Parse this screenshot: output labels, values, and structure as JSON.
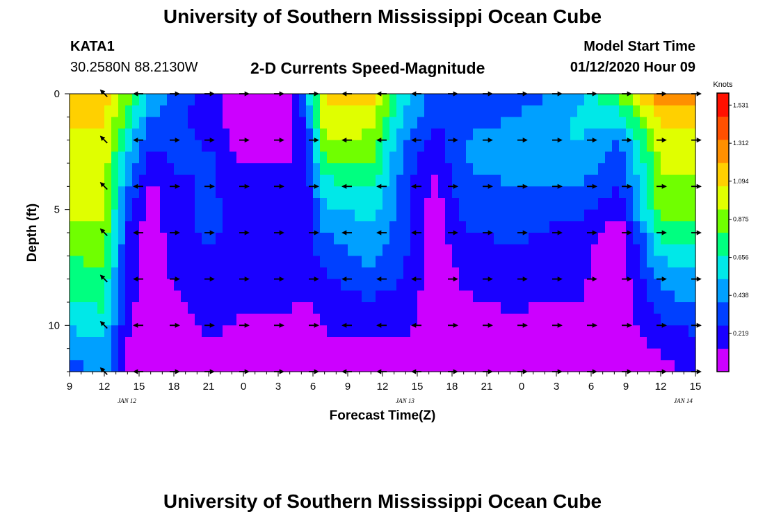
{
  "header": {
    "title": "University of Southern Mississippi Ocean Cube",
    "station": "KATA1",
    "coordinates": "30.2580N 88.2130W",
    "subtitle": "2-D Currents Speed-Magnitude",
    "model_start_label": "Model Start Time",
    "model_start_value": "01/12/2020 Hour 09"
  },
  "footer": {
    "title": "University of Southern Mississippi Ocean Cube"
  },
  "chart_data": {
    "type": "heatmap",
    "xlabel": "Forecast Time(Z)",
    "ylabel": "Depth (ft)",
    "x_tick_labels": [
      "9",
      "12",
      "15",
      "18",
      "21",
      "0",
      "3",
      "6",
      "9",
      "12",
      "15",
      "18",
      "21",
      "0",
      "3",
      "6",
      "9",
      "12",
      "15"
    ],
    "date_labels": [
      {
        "text": "JAN 12",
        "tick_index": 1.65
      },
      {
        "text": "JAN 13",
        "tick_index": 9.65
      },
      {
        "text": "JAN 14",
        "tick_index": 17.65
      }
    ],
    "x_range_hours": [
      0,
      54
    ],
    "y_tick_labels": [
      "0",
      "5",
      "10"
    ],
    "y_tick_values": [
      0,
      5,
      10
    ],
    "yrange": [
      0,
      12
    ],
    "colorbar": {
      "label": "Knots",
      "tick_labels": [
        "1.531",
        "1.312",
        "1.094",
        "0.875",
        "0.656",
        "0.438",
        "0.219"
      ],
      "tick_values": [
        1.531,
        1.312,
        1.094,
        0.875,
        0.656,
        0.438,
        0.219
      ],
      "range": [
        0,
        1.6
      ],
      "colors": [
        "#cc00ff",
        "#1a00ff",
        "#0040ff",
        "#00a0ff",
        "#00e8e8",
        "#00ff80",
        "#70ff00",
        "#e0ff00",
        "#ffd000",
        "#ff9000",
        "#ff5000",
        "#ff1000"
      ]
    },
    "depth_levels": [
      0,
      1,
      2,
      3,
      4,
      5,
      6,
      7,
      8,
      9,
      10,
      11,
      12
    ],
    "speed_profiles": [
      {
        "hour": 0,
        "speeds": [
          1.2,
          1.1,
          1.05,
          1.0,
          1.0,
          0.95,
          0.9,
          0.8,
          0.75,
          0.65,
          0.55,
          0.45,
          0.3
        ]
      },
      {
        "hour": 3,
        "speeds": [
          1.15,
          1.1,
          1.05,
          1.0,
          0.95,
          0.95,
          0.9,
          0.85,
          0.75,
          0.7,
          0.6,
          0.5,
          0.45
        ]
      },
      {
        "hour": 5,
        "speeds": [
          0.9,
          0.75,
          0.6,
          0.5,
          0.4,
          0.3,
          0.25,
          0.2,
          0.2,
          0.18,
          0.15,
          0.12,
          0.1
        ]
      },
      {
        "hour": 7,
        "speeds": [
          0.55,
          0.4,
          0.3,
          0.2,
          0.12,
          0.08,
          0.05,
          0.03,
          0.05,
          0.06,
          0.06,
          0.06,
          0.06
        ]
      },
      {
        "hour": 9,
        "speeds": [
          0.4,
          0.3,
          0.3,
          0.3,
          0.2,
          0.2,
          0.2,
          0.2,
          0.15,
          0.1,
          0.1,
          0.1,
          0.08
        ]
      },
      {
        "hour": 12,
        "speeds": [
          0.15,
          0.2,
          0.25,
          0.3,
          0.3,
          0.3,
          0.3,
          0.25,
          0.25,
          0.2,
          0.15,
          0.12,
          0.1
        ]
      },
      {
        "hour": 15,
        "speeds": [
          0.08,
          0.05,
          0.06,
          0.12,
          0.18,
          0.2,
          0.2,
          0.2,
          0.18,
          0.15,
          0.12,
          0.1,
          0.08
        ]
      },
      {
        "hour": 19,
        "speeds": [
          0.05,
          0.05,
          0.06,
          0.12,
          0.18,
          0.18,
          0.18,
          0.18,
          0.16,
          0.14,
          0.12,
          0.1,
          0.08
        ]
      },
      {
        "hour": 20.5,
        "speeds": [
          0.5,
          0.35,
          0.3,
          0.25,
          0.2,
          0.2,
          0.2,
          0.2,
          0.18,
          0.12,
          0.08,
          0.06,
          0.05
        ]
      },
      {
        "hour": 22,
        "speeds": [
          1.1,
          1.0,
          0.95,
          0.8,
          0.6,
          0.5,
          0.4,
          0.3,
          0.25,
          0.2,
          0.15,
          0.1,
          0.08
        ]
      },
      {
        "hour": 26,
        "speeds": [
          1.15,
          1.0,
          0.9,
          0.8,
          0.7,
          0.6,
          0.5,
          0.45,
          0.35,
          0.25,
          0.15,
          0.1,
          0.08
        ]
      },
      {
        "hour": 29,
        "speeds": [
          0.6,
          0.5,
          0.4,
          0.35,
          0.3,
          0.3,
          0.3,
          0.28,
          0.25,
          0.2,
          0.15,
          0.1,
          0.08
        ]
      },
      {
        "hour": 31.5,
        "speeds": [
          0.35,
          0.3,
          0.2,
          0.15,
          0.1,
          0.06,
          0.04,
          0.04,
          0.05,
          0.06,
          0.06,
          0.06,
          0.06
        ]
      },
      {
        "hour": 34,
        "speeds": [
          0.3,
          0.35,
          0.4,
          0.4,
          0.35,
          0.3,
          0.25,
          0.2,
          0.15,
          0.12,
          0.1,
          0.08,
          0.06
        ]
      },
      {
        "hour": 38,
        "speeds": [
          0.25,
          0.4,
          0.45,
          0.45,
          0.4,
          0.35,
          0.3,
          0.25,
          0.2,
          0.15,
          0.1,
          0.08,
          0.06
        ]
      },
      {
        "hour": 44,
        "speeds": [
          0.5,
          0.55,
          0.55,
          0.5,
          0.4,
          0.3,
          0.2,
          0.18,
          0.16,
          0.13,
          0.1,
          0.08,
          0.07
        ]
      },
      {
        "hour": 47.5,
        "speeds": [
          0.9,
          0.6,
          0.4,
          0.3,
          0.25,
          0.2,
          0.05,
          0.04,
          0.04,
          0.06,
          0.06,
          0.07,
          0.07
        ]
      },
      {
        "hour": 51,
        "speeds": [
          1.3,
          1.15,
          1.0,
          0.95,
          0.9,
          0.85,
          0.7,
          0.55,
          0.45,
          0.35,
          0.25,
          0.15,
          0.1
        ]
      },
      {
        "hour": 54,
        "speeds": [
          1.3,
          1.15,
          1.0,
          0.95,
          0.9,
          0.85,
          0.75,
          0.6,
          0.5,
          0.4,
          0.3,
          0.2,
          0.15
        ]
      }
    ],
    "vector_hours": [
      3,
      6,
      9,
      12,
      15,
      18,
      21,
      24,
      27,
      30,
      33,
      36,
      39,
      42,
      45,
      48,
      51,
      54
    ],
    "vector_depths": [
      0,
      2,
      4,
      6,
      8,
      10,
      12
    ],
    "vector_direction_deg_by_hour": [
      {
        "hour": 3,
        "deg": 225
      },
      {
        "hour": 6,
        "deg": 180
      },
      {
        "hour": 12,
        "deg": 0
      },
      {
        "hour": 21,
        "deg": 0
      },
      {
        "hour": 22,
        "deg": 180
      },
      {
        "hour": 30,
        "deg": 180
      },
      {
        "hour": 35,
        "deg": 0
      },
      {
        "hour": 54,
        "deg": 0
      }
    ]
  }
}
